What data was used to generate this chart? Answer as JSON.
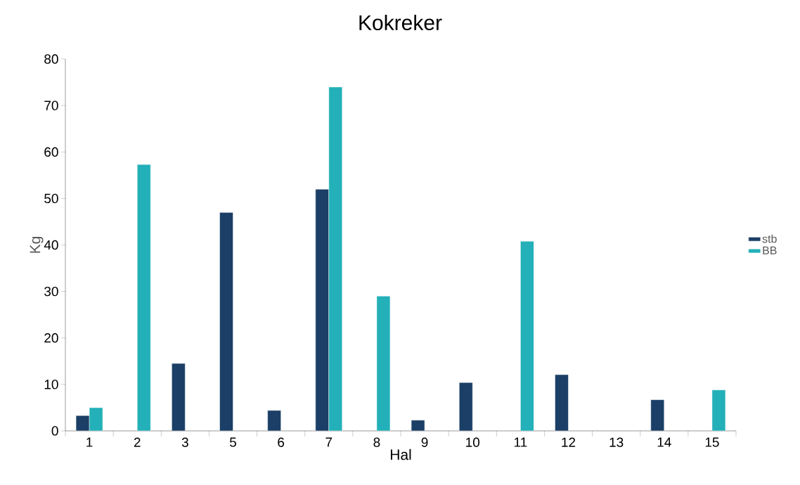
{
  "chart_data": {
    "type": "bar",
    "title": "Kokreker",
    "xlabel": "Hal",
    "ylabel": "Kg",
    "categories": [
      "1",
      "2",
      "3",
      "5",
      "6",
      "7",
      "8",
      "9",
      "10",
      "11",
      "12",
      "13",
      "14",
      "15"
    ],
    "series": [
      {
        "name": "stb",
        "color": "#1b3f66",
        "values": [
          3.3,
          null,
          14.5,
          47.0,
          4.4,
          52.0,
          null,
          2.3,
          10.4,
          null,
          12.1,
          null,
          6.7,
          null
        ]
      },
      {
        "name": "BB",
        "color": "#23b0b8",
        "values": [
          5.0,
          57.3,
          null,
          null,
          null,
          74.0,
          29.0,
          null,
          null,
          40.8,
          null,
          null,
          null,
          8.8
        ]
      }
    ],
    "ylim": [
      0,
      80
    ],
    "yticks": [
      0,
      10,
      20,
      30,
      40,
      50,
      60,
      70,
      80
    ],
    "grid": false,
    "legend": "right"
  }
}
